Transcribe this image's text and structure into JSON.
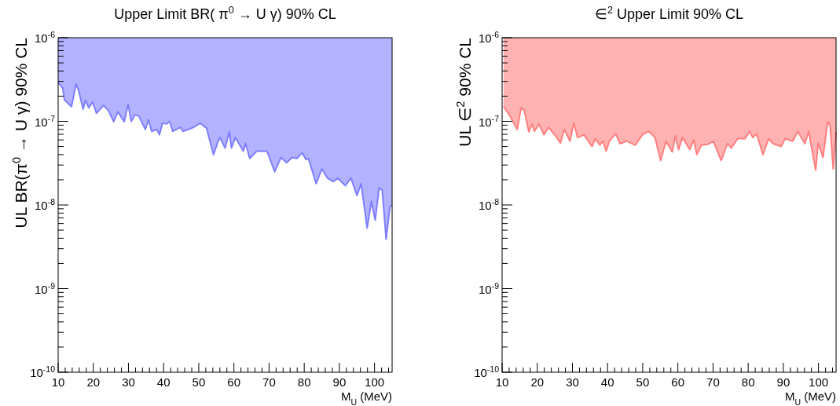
{
  "chart_data": [
    {
      "type": "line",
      "title": "Upper Limit BR( π$^{0}$ → U γ) 90% CL",
      "xlabel": "M$_{U}$ (MeV)",
      "ylabel": "UL BR(π$^{0}$ → U γ) 90% CL",
      "log": "y",
      "grid": false,
      "marker": "none",
      "xlim": [
        10,
        105
      ],
      "ylim": [
        1e-10,
        1e-06
      ],
      "xticks": [
        10,
        {
          "value": 12,
          "label": null
        },
        {
          "value": 14,
          "label": null
        },
        {
          "value": 16,
          "label": null
        },
        {
          "value": 18,
          "label": null
        },
        20,
        {
          "value": 22,
          "label": null
        },
        {
          "value": 24,
          "label": null
        },
        {
          "value": 26,
          "label": null
        },
        {
          "value": 28,
          "label": null
        },
        30,
        {
          "value": 32,
          "label": null
        },
        {
          "value": 34,
          "label": null
        },
        {
          "value": 36,
          "label": null
        },
        {
          "value": 38,
          "label": null
        },
        40,
        {
          "value": 42,
          "label": null
        },
        {
          "value": 44,
          "label": null
        },
        {
          "value": 46,
          "label": null
        },
        {
          "value": 48,
          "label": null
        },
        50,
        {
          "value": 52,
          "label": null
        },
        {
          "value": 54,
          "label": null
        },
        {
          "value": 56,
          "label": null
        },
        {
          "value": 58,
          "label": null
        },
        60,
        {
          "value": 62,
          "label": null
        },
        {
          "value": 64,
          "label": null
        },
        {
          "value": 66,
          "label": null
        },
        {
          "value": 68,
          "label": null
        },
        70,
        {
          "value": 72,
          "label": null
        },
        {
          "value": 74,
          "label": null
        },
        {
          "value": 76,
          "label": null
        },
        {
          "value": 78,
          "label": null
        },
        80,
        {
          "value": 82,
          "label": null
        },
        {
          "value": 84,
          "label": null
        },
        {
          "value": 86,
          "label": null
        },
        {
          "value": 88,
          "label": null
        },
        90,
        {
          "value": 92,
          "label": null
        },
        {
          "value": 94,
          "label": null
        },
        {
          "value": 96,
          "label": null
        },
        {
          "value": 98,
          "label": null
        },
        100,
        {
          "value": 102,
          "label": null
        },
        {
          "value": 104,
          "label": null
        }
      ],
      "yticks": [
        {
          "value": 1e-10,
          "label": "10$^{-10}$"
        },
        {
          "value": 2e-10,
          "label": null
        },
        {
          "value": 3e-10,
          "label": null
        },
        {
          "value": 4e-10,
          "label": null
        },
        {
          "value": 5e-10,
          "label": null
        },
        {
          "value": 6e-10,
          "label": null
        },
        {
          "value": 7e-10,
          "label": null
        },
        {
          "value": 8e-10,
          "label": null
        },
        {
          "value": 9e-10,
          "label": null
        },
        {
          "value": 1e-09,
          "label": "10$^{-9}$"
        },
        {
          "value": 2e-09,
          "label": null
        },
        {
          "value": 3e-09,
          "label": null
        },
        {
          "value": 4e-09,
          "label": null
        },
        {
          "value": 5e-09,
          "label": null
        },
        {
          "value": 6e-09,
          "label": null
        },
        {
          "value": 7e-09,
          "label": null
        },
        {
          "value": 8e-09,
          "label": null
        },
        {
          "value": 9e-09,
          "label": null
        },
        {
          "value": 1e-08,
          "label": "10$^{-8}$"
        },
        {
          "value": 2e-08,
          "label": null
        },
        {
          "value": 3e-08,
          "label": null
        },
        {
          "value": 4e-08,
          "label": null
        },
        {
          "value": 5e-08,
          "label": null
        },
        {
          "value": 6e-08,
          "label": null
        },
        {
          "value": 7e-08,
          "label": null
        },
        {
          "value": 8e-08,
          "label": null
        },
        {
          "value": 9e-08,
          "label": null
        },
        {
          "value": 1e-07,
          "label": "10$^{-7}$"
        },
        {
          "value": 2e-07,
          "label": null
        },
        {
          "value": 3e-07,
          "label": null
        },
        {
          "value": 4e-07,
          "label": null
        },
        {
          "value": 5e-07,
          "label": null
        },
        {
          "value": 6e-07,
          "label": null
        },
        {
          "value": 7e-07,
          "label": null
        },
        {
          "value": 8e-07,
          "label": null
        },
        {
          "value": 9e-07,
          "label": null
        },
        {
          "value": 1e-06,
          "label": "10$^{-6}$"
        }
      ],
      "x": [
        10,
        11.3,
        11.8,
        13.8,
        15.1,
        15.8,
        17.1,
        17.8,
        18.7,
        19.8,
        20.9,
        22.9,
        24.3,
        25.8,
        27.0,
        28.8,
        29.9,
        30.8,
        31.9,
        33.0,
        34.8,
        35.7,
        36.6,
        38.1,
        38.8,
        39.7,
        40.8,
        41.7,
        42.6,
        44.8,
        45.5,
        48.6,
        50.4,
        52.2,
        54.2,
        55.5,
        56.0,
        57.5,
        58.7,
        59.3,
        60.4,
        62.7,
        63.3,
        64.5,
        66.5,
        69.4,
        71.6,
        73.4,
        75.0,
        76.5,
        77.9,
        79.4,
        80.5,
        81.2,
        83.4,
        85.0,
        86.6,
        88.3,
        89.5,
        91.7,
        93.3,
        95.0,
        96.2,
        97.9,
        99.1,
        100.2,
        101.3,
        102.2,
        103.3,
        104.4,
        105
      ],
      "series": [
        {
          "color": "#7f7fff",
          "values": [
            2.9e-07,
            2.5e-07,
            1.8e-07,
            1.5e-07,
            2.8e-07,
            2.35e-07,
            1.4e-07,
            1.8e-07,
            1.45e-07,
            1.7e-07,
            1.25e-07,
            1.55e-07,
            1.35e-07,
            9.9e-08,
            1.3e-07,
            9.9e-08,
            1.6e-07,
            1e-07,
            1.2e-07,
            1.15e-07,
            8e-08,
            1.05e-07,
            7.6e-08,
            8e-08,
            6.9e-08,
            9.5e-08,
            9.3e-08,
            1e-07,
            7.6e-08,
            8.5e-08,
            7.6e-08,
            8.5e-08,
            9.5e-08,
            8.3e-08,
            4e-08,
            5.8e-08,
            6.4e-08,
            4.8e-08,
            7.5e-08,
            4.8e-08,
            6.4e-08,
            4.4e-08,
            5.5e-08,
            3.6e-08,
            4.4e-08,
            4.4e-08,
            2.5e-08,
            3.7e-08,
            3.2e-08,
            3.7e-08,
            3.6e-08,
            4.2e-08,
            3.5e-08,
            3.6e-08,
            1.8e-08,
            2.7e-08,
            2.1e-08,
            1.9e-08,
            2.1e-08,
            1.7e-08,
            2.1e-08,
            1.3e-08,
            1.8e-08,
            5.3e-09,
            1.1e-08,
            6.6e-09,
            1.6e-08,
            1.5e-08,
            3.9e-09,
            9.6e-09,
            9.8e-09
          ],
          "lower": [
            2.9e-07,
            2.5e-07,
            1.8e-07,
            1.5e-07,
            2.8e-07,
            2.35e-07,
            1.4e-07,
            1.8e-07,
            1.45e-07,
            1.7e-07,
            1.25e-07,
            1.55e-07,
            1.35e-07,
            9.9e-08,
            1.3e-07,
            9.9e-08,
            1.6e-07,
            1e-07,
            1.2e-07,
            1.15e-07,
            8e-08,
            1.05e-07,
            7.6e-08,
            8e-08,
            6.9e-08,
            9.5e-08,
            9.3e-08,
            1e-07,
            7.6e-08,
            8.5e-08,
            7.6e-08,
            8.5e-08,
            9.5e-08,
            8.3e-08,
            4e-08,
            5.8e-08,
            6.4e-08,
            4.8e-08,
            7.5e-08,
            4.8e-08,
            6.4e-08,
            4.4e-08,
            5.5e-08,
            3.6e-08,
            4.4e-08,
            4.4e-08,
            2.5e-08,
            3.7e-08,
            3.2e-08,
            3.7e-08,
            3.6e-08,
            4.2e-08,
            3.5e-08,
            3.6e-08,
            1.8e-08,
            2.7e-08,
            2.1e-08,
            1.9e-08,
            2.1e-08,
            1.7e-08,
            2.1e-08,
            1.3e-08,
            1.8e-08,
            5.3e-09,
            1.1e-08,
            6.6e-09,
            1.6e-08,
            1.5e-08,
            3.9e-09,
            9.6e-09,
            9.8e-09
          ],
          "upper": [
            1e-06,
            1e-06,
            1e-06,
            1e-06,
            1e-06,
            1e-06,
            1e-06,
            1e-06,
            1e-06,
            1e-06,
            1e-06,
            1e-06,
            1e-06,
            1e-06,
            1e-06,
            1e-06,
            1e-06,
            1e-06,
            1e-06,
            1e-06,
            1e-06,
            1e-06,
            1e-06,
            1e-06,
            1e-06,
            1e-06,
            1e-06,
            1e-06,
            1e-06,
            1e-06,
            1e-06,
            1e-06,
            1e-06,
            1e-06,
            1e-06,
            1e-06,
            1e-06,
            1e-06,
            1e-06,
            1e-06,
            1e-06,
            1e-06,
            1e-06,
            1e-06,
            1e-06,
            1e-06,
            1e-06,
            1e-06,
            1e-06,
            1e-06,
            1e-06,
            1e-06,
            1e-06,
            1e-06,
            1e-06,
            1e-06,
            1e-06,
            1e-06,
            1e-06,
            1e-06,
            1e-06,
            1e-06,
            1e-06,
            1e-06,
            1e-06,
            1e-06,
            1e-06,
            1e-06,
            1e-06,
            1e-06,
            1e-06
          ]
        }
      ]
    },
    {
      "type": "line",
      "title": "∈$^{2}$ Upper Limit 90% CL",
      "xlabel": "M$_{U}$ (MeV)",
      "ylabel": "UL ∈$^{2}$ 90% CL",
      "log": "y",
      "grid": false,
      "marker": "none",
      "xlim": [
        10,
        105
      ],
      "ylim": [
        1e-10,
        1e-06
      ],
      "xticks": [
        10,
        {
          "value": 12,
          "label": null
        },
        {
          "value": 14,
          "label": null
        },
        {
          "value": 16,
          "label": null
        },
        {
          "value": 18,
          "label": null
        },
        20,
        {
          "value": 22,
          "label": null
        },
        {
          "value": 24,
          "label": null
        },
        {
          "value": 26,
          "label": null
        },
        {
          "value": 28,
          "label": null
        },
        30,
        {
          "value": 32,
          "label": null
        },
        {
          "value": 34,
          "label": null
        },
        {
          "value": 36,
          "label": null
        },
        {
          "value": 38,
          "label": null
        },
        40,
        {
          "value": 42,
          "label": null
        },
        {
          "value": 44,
          "label": null
        },
        {
          "value": 46,
          "label": null
        },
        {
          "value": 48,
          "label": null
        },
        50,
        {
          "value": 52,
          "label": null
        },
        {
          "value": 54,
          "label": null
        },
        {
          "value": 56,
          "label": null
        },
        {
          "value": 58,
          "label": null
        },
        60,
        {
          "value": 62,
          "label": null
        },
        {
          "value": 64,
          "label": null
        },
        {
          "value": 66,
          "label": null
        },
        {
          "value": 68,
          "label": null
        },
        70,
        {
          "value": 72,
          "label": null
        },
        {
          "value": 74,
          "label": null
        },
        {
          "value": 76,
          "label": null
        },
        {
          "value": 78,
          "label": null
        },
        80,
        {
          "value": 82,
          "label": null
        },
        {
          "value": 84,
          "label": null
        },
        {
          "value": 86,
          "label": null
        },
        {
          "value": 88,
          "label": null
        },
        90,
        {
          "value": 92,
          "label": null
        },
        {
          "value": 94,
          "label": null
        },
        {
          "value": 96,
          "label": null
        },
        {
          "value": 98,
          "label": null
        },
        100,
        {
          "value": 102,
          "label": null
        },
        {
          "value": 104,
          "label": null
        }
      ],
      "yticks": [
        {
          "value": 1e-10,
          "label": "10$^{-10}$"
        },
        {
          "value": 2e-10,
          "label": null
        },
        {
          "value": 3e-10,
          "label": null
        },
        {
          "value": 4e-10,
          "label": null
        },
        {
          "value": 5e-10,
          "label": null
        },
        {
          "value": 6e-10,
          "label": null
        },
        {
          "value": 7e-10,
          "label": null
        },
        {
          "value": 8e-10,
          "label": null
        },
        {
          "value": 9e-10,
          "label": null
        },
        {
          "value": 1e-09,
          "label": "10$^{-9}$"
        },
        {
          "value": 2e-09,
          "label": null
        },
        {
          "value": 3e-09,
          "label": null
        },
        {
          "value": 4e-09,
          "label": null
        },
        {
          "value": 5e-09,
          "label": null
        },
        {
          "value": 6e-09,
          "label": null
        },
        {
          "value": 7e-09,
          "label": null
        },
        {
          "value": 8e-09,
          "label": null
        },
        {
          "value": 9e-09,
          "label": null
        },
        {
          "value": 1e-08,
          "label": "10$^{-8}$"
        },
        {
          "value": 2e-08,
          "label": null
        },
        {
          "value": 3e-08,
          "label": null
        },
        {
          "value": 4e-08,
          "label": null
        },
        {
          "value": 5e-08,
          "label": null
        },
        {
          "value": 6e-08,
          "label": null
        },
        {
          "value": 7e-08,
          "label": null
        },
        {
          "value": 8e-08,
          "label": null
        },
        {
          "value": 9e-08,
          "label": null
        },
        {
          "value": 1e-07,
          "label": "10$^{-7}$"
        },
        {
          "value": 2e-07,
          "label": null
        },
        {
          "value": 3e-07,
          "label": null
        },
        {
          "value": 4e-07,
          "label": null
        },
        {
          "value": 5e-07,
          "label": null
        },
        {
          "value": 6e-07,
          "label": null
        },
        {
          "value": 7e-07,
          "label": null
        },
        {
          "value": 8e-07,
          "label": null
        },
        {
          "value": 9e-07,
          "label": null
        },
        {
          "value": 1e-06,
          "label": "10$^{-6}$"
        }
      ],
      "x": [
        10.4,
        12.0,
        13.1,
        14.3,
        15.4,
        16.3,
        17.6,
        18.5,
        19.2,
        20.5,
        21.9,
        23.2,
        25.2,
        26.6,
        27.7,
        29.3,
        30.4,
        31.5,
        33.3,
        35.6,
        36.5,
        37.8,
        38.7,
        39.6,
        40.5,
        42.3,
        43.6,
        45.4,
        47.9,
        49.9,
        51.7,
        53.5,
        55.1,
        56.6,
        58.4,
        59.3,
        60.2,
        61.3,
        63.4,
        64.5,
        65.4,
        66.7,
        68.5,
        70.1,
        72.3,
        74.1,
        75.2,
        77.0,
        79.1,
        80.4,
        81.3,
        82.4,
        84.2,
        85.8,
        87.1,
        89.4,
        90.5,
        92.7,
        94.1,
        96.1,
        97.2,
        99.2,
        99.9,
        101.3,
        102.6,
        103.3,
        104.2,
        105
      ],
      "series": [
        {
          "color": "#ff7f7f",
          "values": [
            1.5e-07,
            1.2e-07,
            9.9e-08,
            8e-08,
            1.45e-07,
            1.35e-07,
            7.5e-08,
            9.3e-08,
            7.6e-08,
            9.3e-08,
            6.9e-08,
            8.5e-08,
            6.7e-08,
            5.5e-08,
            8e-08,
            5.8e-08,
            9.5e-08,
            6.4e-08,
            6.9e-08,
            5e-08,
            6.2e-08,
            5.2e-08,
            5.8e-08,
            4.4e-08,
            5.8e-08,
            7.1e-08,
            5.4e-08,
            5.8e-08,
            5.2e-08,
            6.9e-08,
            7.6e-08,
            6.4e-08,
            3.4e-08,
            5.8e-08,
            4.3e-08,
            6.7e-08,
            4.6e-08,
            6.4e-08,
            4.6e-08,
            6e-08,
            4e-08,
            5.2e-08,
            5.3e-08,
            5.8e-08,
            3.4e-08,
            5.4e-08,
            4.8e-08,
            6.2e-08,
            6.2e-08,
            7.6e-08,
            6.4e-08,
            7.1e-08,
            4e-08,
            6.2e-08,
            5.4e-08,
            5e-08,
            6.2e-08,
            5.8e-08,
            7.6e-08,
            5.4e-08,
            7.6e-08,
            2.6e-08,
            5.5e-08,
            3.7e-08,
            9.9e-08,
            8.9e-08,
            2.7e-08,
            7.5e-08
          ],
          "lower": [
            1.5e-07,
            1.2e-07,
            9.9e-08,
            8e-08,
            1.45e-07,
            1.35e-07,
            7.5e-08,
            9.3e-08,
            7.6e-08,
            9.3e-08,
            6.9e-08,
            8.5e-08,
            6.7e-08,
            5.5e-08,
            8e-08,
            5.8e-08,
            9.5e-08,
            6.4e-08,
            6.9e-08,
            5e-08,
            6.2e-08,
            5.2e-08,
            5.8e-08,
            4.4e-08,
            5.8e-08,
            7.1e-08,
            5.4e-08,
            5.8e-08,
            5.2e-08,
            6.9e-08,
            7.6e-08,
            6.4e-08,
            3.4e-08,
            5.8e-08,
            4.3e-08,
            6.7e-08,
            4.6e-08,
            6.4e-08,
            4.6e-08,
            6e-08,
            4e-08,
            5.2e-08,
            5.3e-08,
            5.8e-08,
            3.4e-08,
            5.4e-08,
            4.8e-08,
            6.2e-08,
            6.2e-08,
            7.6e-08,
            6.4e-08,
            7.1e-08,
            4e-08,
            6.2e-08,
            5.4e-08,
            5e-08,
            6.2e-08,
            5.8e-08,
            7.6e-08,
            5.4e-08,
            7.6e-08,
            2.6e-08,
            5.5e-08,
            3.7e-08,
            9.9e-08,
            8.9e-08,
            2.7e-08,
            7.5e-08
          ],
          "upper": [
            1e-06,
            1e-06,
            1e-06,
            1e-06,
            1e-06,
            1e-06,
            1e-06,
            1e-06,
            1e-06,
            1e-06,
            1e-06,
            1e-06,
            1e-06,
            1e-06,
            1e-06,
            1e-06,
            1e-06,
            1e-06,
            1e-06,
            1e-06,
            1e-06,
            1e-06,
            1e-06,
            1e-06,
            1e-06,
            1e-06,
            1e-06,
            1e-06,
            1e-06,
            1e-06,
            1e-06,
            1e-06,
            1e-06,
            1e-06,
            1e-06,
            1e-06,
            1e-06,
            1e-06,
            1e-06,
            1e-06,
            1e-06,
            1e-06,
            1e-06,
            1e-06,
            1e-06,
            1e-06,
            1e-06,
            1e-06,
            1e-06,
            1e-06,
            1e-06,
            1e-06,
            1e-06,
            1e-06,
            1e-06,
            1e-06,
            1e-06,
            1e-06,
            1e-06,
            1e-06,
            1e-06,
            1e-06,
            1e-06,
            1e-06,
            1e-06,
            1e-06,
            1e-06,
            1e-06
          ]
        }
      ]
    }
  ]
}
